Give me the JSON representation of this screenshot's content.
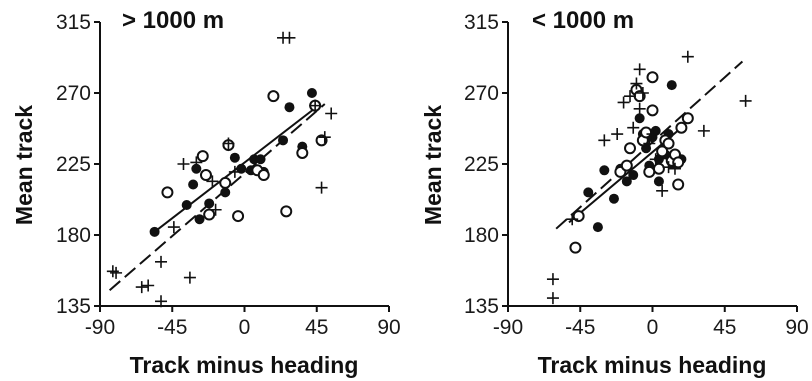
{
  "chart_data": [
    {
      "type": "scatter",
      "title": "> 1000 m",
      "xlabel": "Track minus heading",
      "ylabel": "Mean track",
      "xlim": [
        -90,
        90
      ],
      "ylim": [
        135,
        315
      ],
      "xticks": [
        "-90",
        "-45",
        "0",
        "45",
        "90"
      ],
      "yticks": [
        "135",
        "180",
        "225",
        "270",
        "315"
      ],
      "grid": false,
      "series": [
        {
          "marker": "filled-circle",
          "points": [
            [
              -56,
              182
            ],
            [
              -36,
              199
            ],
            [
              -28,
              190
            ],
            [
              -22,
              200
            ],
            [
              -32,
              212
            ],
            [
              -30,
              222
            ],
            [
              -12,
              207
            ],
            [
              -6,
              229
            ],
            [
              -2,
              222
            ],
            [
              4,
              221
            ],
            [
              6,
              228
            ],
            [
              12,
              220
            ],
            [
              10,
              228
            ],
            [
              24,
              240
            ],
            [
              28,
              261
            ],
            [
              36,
              236
            ],
            [
              42,
              270
            ]
          ]
        },
        {
          "marker": "open-circle",
          "points": [
            [
              -48,
              207
            ],
            [
              -26,
              230
            ],
            [
              -24,
              218
            ],
            [
              -22,
              193
            ],
            [
              -12,
              213
            ],
            [
              -10,
              237
            ],
            [
              -4,
              192
            ],
            [
              8,
              221
            ],
            [
              12,
              218
            ],
            [
              18,
              268
            ],
            [
              26,
              195
            ],
            [
              36,
              232
            ],
            [
              44,
              262
            ],
            [
              48,
              240
            ]
          ]
        },
        {
          "marker": "cross",
          "points": [
            [
              -82,
              157
            ],
            [
              -80,
              156
            ],
            [
              -64,
              147
            ],
            [
              -60,
              148
            ],
            [
              -52,
              138
            ],
            [
              -52,
              163
            ],
            [
              -44,
              185
            ],
            [
              -38,
              225
            ],
            [
              -34,
              153
            ],
            [
              -30,
              226
            ],
            [
              -20,
              214
            ],
            [
              -18,
              196
            ],
            [
              -6,
              220
            ],
            [
              -10,
              238
            ],
            [
              24,
              305
            ],
            [
              28,
              305
            ],
            [
              50,
              242
            ],
            [
              54,
              257
            ],
            [
              44,
              262
            ],
            [
              48,
              210
            ]
          ]
        }
      ],
      "fit_lines": [
        {
          "style": "solid",
          "x": [
            -56,
            46
          ],
          "y": [
            182,
            262
          ]
        },
        {
          "style": "dashed",
          "x": [
            -84,
            50
          ],
          "y": [
            145,
            263
          ]
        }
      ]
    },
    {
      "type": "scatter",
      "title": "< 1000 m",
      "xlabel": "Track minus heading",
      "ylabel": "Mean track",
      "xlim": [
        -90,
        90
      ],
      "ylim": [
        135,
        315
      ],
      "xticks": [
        "-90",
        "-45",
        "0",
        "45",
        "90"
      ],
      "yticks": [
        "135",
        "180",
        "225",
        "270",
        "315"
      ],
      "grid": false,
      "series": [
        {
          "marker": "filled-circle",
          "points": [
            [
              -40,
              207
            ],
            [
              -34,
              185
            ],
            [
              -30,
              221
            ],
            [
              -24,
              203
            ],
            [
              -20,
              222
            ],
            [
              -16,
              214
            ],
            [
              -12,
              218
            ],
            [
              -8,
              254
            ],
            [
              -6,
              244
            ],
            [
              -4,
              235
            ],
            [
              -2,
              224
            ],
            [
              0,
              242
            ],
            [
              2,
              246
            ],
            [
              4,
              228
            ],
            [
              4,
              214
            ],
            [
              6,
              232
            ],
            [
              8,
              231
            ],
            [
              10,
              244
            ],
            [
              12,
              275
            ],
            [
              16,
              227
            ],
            [
              18,
              228
            ]
          ]
        },
        {
          "marker": "open-circle",
          "points": [
            [
              -48,
              172
            ],
            [
              -46,
              192
            ],
            [
              -20,
              220
            ],
            [
              -16,
              224
            ],
            [
              -14,
              235
            ],
            [
              -10,
              272
            ],
            [
              -8,
              268
            ],
            [
              -6,
              240
            ],
            [
              -4,
              245
            ],
            [
              -2,
              220
            ],
            [
              0,
              280
            ],
            [
              0,
              259
            ],
            [
              4,
              222
            ],
            [
              6,
              233
            ],
            [
              8,
              240
            ],
            [
              10,
              238
            ],
            [
              12,
              227
            ],
            [
              14,
              231
            ],
            [
              16,
              226
            ],
            [
              16,
              212
            ],
            [
              18,
              248
            ],
            [
              22,
              254
            ]
          ]
        },
        {
          "marker": "cross",
          "points": [
            [
              -62,
              152
            ],
            [
              -62,
              140
            ],
            [
              -50,
              190
            ],
            [
              -30,
              240
            ],
            [
              -22,
              244
            ],
            [
              -18,
              264
            ],
            [
              -14,
              268
            ],
            [
              -12,
              248
            ],
            [
              -10,
              276
            ],
            [
              -8,
              260
            ],
            [
              -8,
              285
            ],
            [
              -6,
              270
            ],
            [
              -2,
              238
            ],
            [
              0,
              244
            ],
            [
              2,
              228
            ],
            [
              6,
              208
            ],
            [
              10,
              223
            ],
            [
              14,
              222
            ],
            [
              22,
              293
            ],
            [
              32,
              246
            ],
            [
              58,
              265
            ]
          ]
        }
      ],
      "fit_lines": [
        {
          "style": "solid",
          "x": [
            -52,
            18
          ],
          "y": [
            188,
            248
          ]
        },
        {
          "style": "dashed",
          "x": [
            -60,
            56
          ],
          "y": [
            184,
            290
          ]
        }
      ]
    }
  ]
}
